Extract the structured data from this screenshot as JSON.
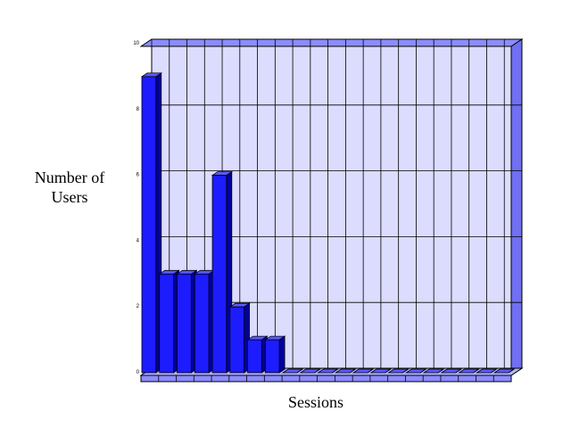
{
  "chart_data": {
    "type": "bar",
    "y_label": "Number of Users",
    "x_label": "Sessions",
    "categories": [
      null,
      null,
      null,
      null,
      null,
      null,
      null,
      null,
      null,
      null,
      null,
      null,
      null,
      null,
      null,
      null,
      null,
      null,
      null,
      null,
      null
    ],
    "values": [
      9,
      3,
      3,
      3,
      6,
      2,
      1,
      1,
      0,
      0,
      0,
      0,
      0,
      0,
      0,
      0,
      0,
      0,
      0,
      0,
      0
    ],
    "color": "#1c1cff",
    "ylim": [
      0,
      10
    ],
    "yticks": [
      0,
      2,
      4,
      6,
      8,
      10
    ],
    "grid": true
  }
}
